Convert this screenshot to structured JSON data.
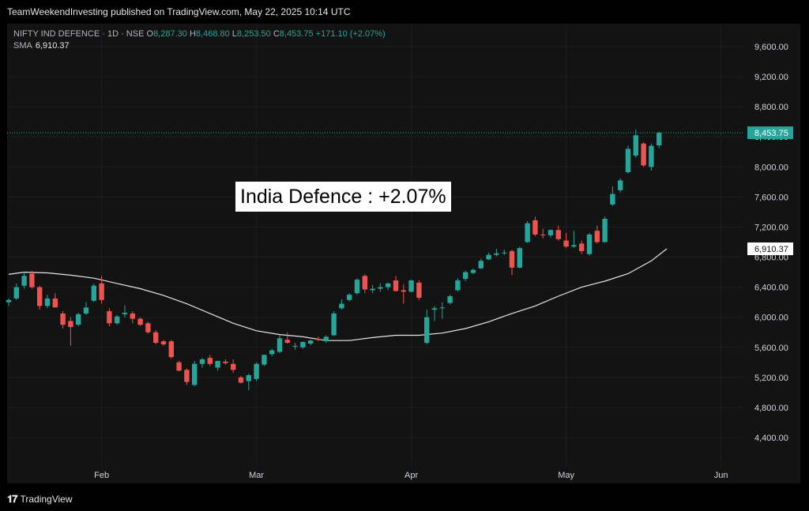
{
  "header": {
    "publish_line": "TeamWeekendInvesting published on TradingView.com, May 22, 2025 10:14 UTC"
  },
  "legend": {
    "symbol": "NIFTY IND DEFENCE · 1D · NSE",
    "open_label": "O",
    "open": "8,287.30",
    "high_label": "H",
    "high": "8,468.80",
    "low_label": "L",
    "low": "8,253.50",
    "close_label": "C",
    "close": "8,453.75",
    "change": "+171.10 (+2.07%)",
    "sma_label": "SMA",
    "sma_value": "6,910.37"
  },
  "annotation": "India Defence : +2.07%",
  "footer": {
    "brand": "TradingView"
  },
  "colors": {
    "up": "#26a69a",
    "down": "#ef5350",
    "sma": "#e6e6e6",
    "grid": "#1e1e1e",
    "price_line": "#26a69a"
  },
  "chart_data": {
    "type": "candlestick",
    "ylim": [
      4000,
      10000
    ],
    "y_ticks": [
      "4,400.00",
      "4,800.00",
      "5,200.00",
      "5,600.00",
      "6,000.00",
      "6,400.00",
      "6,800.00",
      "7,200.00",
      "7,600.00",
      "8,000.00",
      "8,400.00",
      "8,800.00",
      "9,200.00",
      "9,600.00"
    ],
    "x_ticks": [
      {
        "label": "Feb",
        "index": 12
      },
      {
        "label": "Mar",
        "index": 32
      },
      {
        "label": "Apr",
        "index": 52
      },
      {
        "label": "May",
        "index": 72
      },
      {
        "label": "Jun",
        "index": 92
      }
    ],
    "last_price_label": "8,453.75",
    "last_price": 8453.75,
    "sma_label": "6,910.37",
    "sma_last": 6910.37,
    "candles": [
      {
        "o": 6200,
        "h": 6250,
        "l": 6150,
        "c": 6230
      },
      {
        "o": 6250,
        "h": 6450,
        "l": 6230,
        "c": 6400
      },
      {
        "o": 6420,
        "h": 6600,
        "l": 6380,
        "c": 6550
      },
      {
        "o": 6580,
        "h": 6620,
        "l": 6380,
        "c": 6400
      },
      {
        "o": 6400,
        "h": 6420,
        "l": 6100,
        "c": 6150
      },
      {
        "o": 6150,
        "h": 6300,
        "l": 6120,
        "c": 6250
      },
      {
        "o": 6250,
        "h": 6320,
        "l": 6180,
        "c": 6130
      },
      {
        "o": 6050,
        "h": 6080,
        "l": 5850,
        "c": 5900
      },
      {
        "o": 5950,
        "h": 6000,
        "l": 5620,
        "c": 5870
      },
      {
        "o": 5900,
        "h": 6060,
        "l": 5880,
        "c": 6040
      },
      {
        "o": 6050,
        "h": 6200,
        "l": 6030,
        "c": 6130
      },
      {
        "o": 6220,
        "h": 6450,
        "l": 6200,
        "c": 6420
      },
      {
        "o": 6450,
        "h": 6550,
        "l": 6180,
        "c": 6230
      },
      {
        "o": 6080,
        "h": 6120,
        "l": 5880,
        "c": 5920
      },
      {
        "o": 5920,
        "h": 6030,
        "l": 5900,
        "c": 6010
      },
      {
        "o": 6040,
        "h": 6160,
        "l": 6000,
        "c": 6060
      },
      {
        "o": 6050,
        "h": 6080,
        "l": 5920,
        "c": 5980
      },
      {
        "o": 5980,
        "h": 6000,
        "l": 5880,
        "c": 5900
      },
      {
        "o": 5920,
        "h": 5940,
        "l": 5780,
        "c": 5800
      },
      {
        "o": 5800,
        "h": 5830,
        "l": 5640,
        "c": 5660
      },
      {
        "o": 5680,
        "h": 5700,
        "l": 5620,
        "c": 5640
      },
      {
        "o": 5680,
        "h": 5700,
        "l": 5450,
        "c": 5470
      },
      {
        "o": 5400,
        "h": 5420,
        "l": 5280,
        "c": 5290
      },
      {
        "o": 5300,
        "h": 5320,
        "l": 5100,
        "c": 5140
      },
      {
        "o": 5100,
        "h": 5420,
        "l": 5080,
        "c": 5380
      },
      {
        "o": 5380,
        "h": 5460,
        "l": 5330,
        "c": 5440
      },
      {
        "o": 5460,
        "h": 5500,
        "l": 5350,
        "c": 5380
      },
      {
        "o": 5330,
        "h": 5420,
        "l": 5290,
        "c": 5420
      },
      {
        "o": 5410,
        "h": 5440,
        "l": 5370,
        "c": 5390
      },
      {
        "o": 5380,
        "h": 5440,
        "l": 5260,
        "c": 5300
      },
      {
        "o": 5200,
        "h": 5220,
        "l": 5120,
        "c": 5130
      },
      {
        "o": 5150,
        "h": 5250,
        "l": 5030,
        "c": 5230
      },
      {
        "o": 5180,
        "h": 5400,
        "l": 5150,
        "c": 5380
      },
      {
        "o": 5370,
        "h": 5500,
        "l": 5350,
        "c": 5500
      },
      {
        "o": 5510,
        "h": 5580,
        "l": 5480,
        "c": 5560
      },
      {
        "o": 5540,
        "h": 5760,
        "l": 5520,
        "c": 5720
      },
      {
        "o": 5700,
        "h": 5800,
        "l": 5650,
        "c": 5660
      },
      {
        "o": 5620,
        "h": 5660,
        "l": 5570,
        "c": 5620
      },
      {
        "o": 5600,
        "h": 5680,
        "l": 5580,
        "c": 5670
      },
      {
        "o": 5650,
        "h": 5700,
        "l": 5630,
        "c": 5690
      },
      {
        "o": 5710,
        "h": 5740,
        "l": 5680,
        "c": 5700
      },
      {
        "o": 5680,
        "h": 5760,
        "l": 5660,
        "c": 5740
      },
      {
        "o": 5760,
        "h": 6080,
        "l": 5750,
        "c": 6050
      },
      {
        "o": 6120,
        "h": 6240,
        "l": 6100,
        "c": 6180
      },
      {
        "o": 6230,
        "h": 6320,
        "l": 6210,
        "c": 6300
      },
      {
        "o": 6320,
        "h": 6520,
        "l": 6300,
        "c": 6500
      },
      {
        "o": 6550,
        "h": 6570,
        "l": 6320,
        "c": 6370
      },
      {
        "o": 6360,
        "h": 6430,
        "l": 6320,
        "c": 6380
      },
      {
        "o": 6380,
        "h": 6450,
        "l": 6340,
        "c": 6400
      },
      {
        "o": 6400,
        "h": 6460,
        "l": 6360,
        "c": 6450
      },
      {
        "o": 6490,
        "h": 6550,
        "l": 6340,
        "c": 6350
      },
      {
        "o": 6360,
        "h": 6440,
        "l": 6180,
        "c": 6340
      },
      {
        "o": 6340,
        "h": 6500,
        "l": 6330,
        "c": 6490
      },
      {
        "o": 6460,
        "h": 6490,
        "l": 6230,
        "c": 6260
      },
      {
        "o": 5660,
        "h": 6100,
        "l": 5640,
        "c": 6000
      },
      {
        "o": 6100,
        "h": 6150,
        "l": 5950,
        "c": 6120
      },
      {
        "o": 6120,
        "h": 6200,
        "l": 5980,
        "c": 6130
      },
      {
        "o": 6190,
        "h": 6300,
        "l": 6170,
        "c": 6280
      },
      {
        "o": 6360,
        "h": 6520,
        "l": 6340,
        "c": 6490
      },
      {
        "o": 6510,
        "h": 6620,
        "l": 6480,
        "c": 6600
      },
      {
        "o": 6590,
        "h": 6650,
        "l": 6570,
        "c": 6630
      },
      {
        "o": 6650,
        "h": 6780,
        "l": 6640,
        "c": 6750
      },
      {
        "o": 6770,
        "h": 6860,
        "l": 6760,
        "c": 6830
      },
      {
        "o": 6830,
        "h": 6910,
        "l": 6810,
        "c": 6850
      },
      {
        "o": 6860,
        "h": 6900,
        "l": 6830,
        "c": 6860
      },
      {
        "o": 6880,
        "h": 6900,
        "l": 6560,
        "c": 6660
      },
      {
        "o": 6660,
        "h": 6940,
        "l": 6650,
        "c": 6920
      },
      {
        "o": 7000,
        "h": 7280,
        "l": 6990,
        "c": 7250
      },
      {
        "o": 7290,
        "h": 7340,
        "l": 7080,
        "c": 7100
      },
      {
        "o": 7100,
        "h": 7180,
        "l": 7050,
        "c": 7090
      },
      {
        "o": 7090,
        "h": 7170,
        "l": 7060,
        "c": 7160
      },
      {
        "o": 7160,
        "h": 7220,
        "l": 7020,
        "c": 7040
      },
      {
        "o": 7020,
        "h": 7120,
        "l": 6920,
        "c": 6940
      },
      {
        "o": 6940,
        "h": 7150,
        "l": 6920,
        "c": 6960
      },
      {
        "o": 6980,
        "h": 7020,
        "l": 6840,
        "c": 6880
      },
      {
        "o": 6840,
        "h": 7120,
        "l": 6820,
        "c": 7100
      },
      {
        "o": 7150,
        "h": 7220,
        "l": 6980,
        "c": 7000
      },
      {
        "o": 7000,
        "h": 7340,
        "l": 6990,
        "c": 7310
      },
      {
        "o": 7500,
        "h": 7740,
        "l": 7480,
        "c": 7640
      },
      {
        "o": 7690,
        "h": 7850,
        "l": 7660,
        "c": 7820
      },
      {
        "o": 7930,
        "h": 8280,
        "l": 7910,
        "c": 8240
      },
      {
        "o": 8150,
        "h": 8500,
        "l": 8120,
        "c": 8420
      },
      {
        "o": 8310,
        "h": 8330,
        "l": 8000,
        "c": 8020
      },
      {
        "o": 8000,
        "h": 8310,
        "l": 7950,
        "c": 8280
      },
      {
        "o": 8287.3,
        "h": 8468.8,
        "l": 8253.5,
        "c": 8453.75
      }
    ],
    "sma": [
      {
        "i": 0,
        "v": 6570
      },
      {
        "i": 2,
        "v": 6600
      },
      {
        "i": 5,
        "v": 6590
      },
      {
        "i": 8,
        "v": 6560
      },
      {
        "i": 11,
        "v": 6520
      },
      {
        "i": 14,
        "v": 6450
      },
      {
        "i": 17,
        "v": 6380
      },
      {
        "i": 20,
        "v": 6290
      },
      {
        "i": 23,
        "v": 6180
      },
      {
        "i": 26,
        "v": 6050
      },
      {
        "i": 29,
        "v": 5920
      },
      {
        "i": 32,
        "v": 5820
      },
      {
        "i": 35,
        "v": 5770
      },
      {
        "i": 38,
        "v": 5740
      },
      {
        "i": 41,
        "v": 5690
      },
      {
        "i": 44,
        "v": 5690
      },
      {
        "i": 47,
        "v": 5730
      },
      {
        "i": 50,
        "v": 5760
      },
      {
        "i": 53,
        "v": 5760
      },
      {
        "i": 56,
        "v": 5790
      },
      {
        "i": 59,
        "v": 5850
      },
      {
        "i": 62,
        "v": 5940
      },
      {
        "i": 65,
        "v": 6050
      },
      {
        "i": 68,
        "v": 6150
      },
      {
        "i": 71,
        "v": 6280
      },
      {
        "i": 74,
        "v": 6400
      },
      {
        "i": 77,
        "v": 6480
      },
      {
        "i": 80,
        "v": 6580
      },
      {
        "i": 83,
        "v": 6750
      },
      {
        "i": 85,
        "v": 6910.37
      }
    ]
  }
}
